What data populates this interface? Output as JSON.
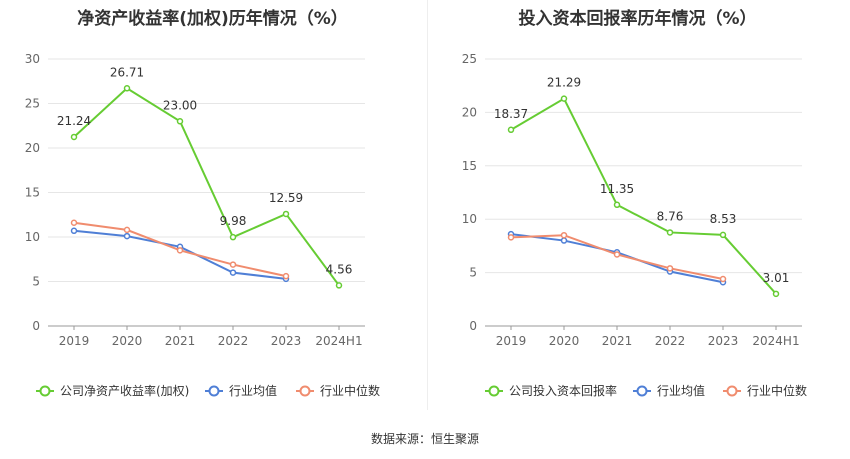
{
  "source_label": "数据来源：恒生聚源",
  "colors": {
    "company": "#66cc33",
    "average": "#4f7fd6",
    "median": "#f08c6e"
  },
  "chart_data": [
    {
      "type": "line",
      "title": "净资产收益率(加权)历年情况（%）",
      "categories": [
        "2019",
        "2020",
        "2021",
        "2022",
        "2023",
        "2024H1"
      ],
      "ylim": [
        0,
        30
      ],
      "yticks": [
        0,
        5,
        10,
        15,
        20,
        25,
        30
      ],
      "grid": true,
      "legend": "bottom",
      "series": [
        {
          "name": "公司净资产收益率(加权)",
          "values": [
            21.24,
            26.71,
            23.0,
            9.98,
            12.59,
            4.56
          ],
          "labels": [
            "21.24",
            "26.71",
            "23.00",
            "9.98",
            "12.59",
            "4.56"
          ]
        },
        {
          "name": "行业均值",
          "values": [
            10.7,
            10.1,
            8.9,
            6.0,
            5.3,
            null
          ]
        },
        {
          "name": "行业中位数",
          "values": [
            11.6,
            10.8,
            8.5,
            6.9,
            5.6,
            null
          ]
        }
      ]
    },
    {
      "type": "line",
      "title": "投入资本回报率历年情况（%）",
      "categories": [
        "2019",
        "2020",
        "2021",
        "2022",
        "2023",
        "2024H1"
      ],
      "ylim": [
        0,
        25
      ],
      "yticks": [
        0,
        5,
        10,
        15,
        20,
        25
      ],
      "grid": true,
      "legend": "bottom",
      "series": [
        {
          "name": "公司投入资本回报率",
          "values": [
            18.37,
            21.29,
            11.35,
            8.76,
            8.53,
            3.01
          ],
          "labels": [
            "18.37",
            "21.29",
            "11.35",
            "8.76",
            "8.53",
            "3.01"
          ]
        },
        {
          "name": "行业均值",
          "values": [
            8.6,
            8.0,
            6.9,
            5.1,
            4.1,
            null
          ]
        },
        {
          "name": "行业中位数",
          "values": [
            8.3,
            8.5,
            6.7,
            5.4,
            4.4,
            null
          ]
        }
      ]
    }
  ]
}
